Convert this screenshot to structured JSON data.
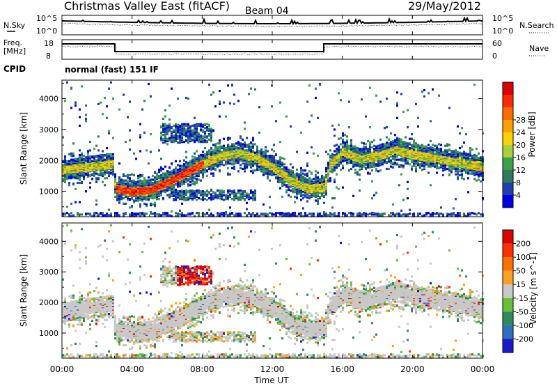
{
  "header": {
    "title": "Christmas Valley East (fitACF)",
    "beam": "Beam 04",
    "date": "29/May/2012"
  },
  "noise_panel": {
    "left_label": "N.Sky",
    "right_label": "N.Search",
    "ticks": [
      "10^5",
      "10^0"
    ]
  },
  "freq_panel": {
    "left_label_1": "Freq.",
    "left_label_2": "[MHz]",
    "left_ticks": [
      "18",
      "8"
    ],
    "right_label": "Nave",
    "right_ticks": [
      "60",
      "0"
    ]
  },
  "cpid": {
    "label": "CPID",
    "value": "normal (fast) 151 IF"
  },
  "x_axis": {
    "label": "Time UT",
    "ticks": [
      "00:00",
      "04:00",
      "08:00",
      "12:00",
      "16:00",
      "20:00",
      "00:00"
    ]
  },
  "chart_data": [
    {
      "type": "heatmap",
      "name": "power",
      "ylabel": "Slant Range [km]",
      "yticks": [
        1000,
        2000,
        3000,
        4000
      ],
      "ylim": [
        180,
        4600
      ],
      "xlim_hours": [
        0,
        24
      ],
      "colorbar_label": "Power [dB]",
      "colorbar_ticks": [
        4,
        8,
        12,
        16,
        20,
        24,
        28
      ],
      "colorbar_colors": [
        "#0000e6",
        "#1f3fb0",
        "#2e7a5c",
        "#3aa04a",
        "#a8d23c",
        "#ffd200",
        "#ffa000",
        "#ff6a00",
        "#ff2a00",
        "#e00000"
      ],
      "band_center_km": [
        [
          0,
          1700
        ],
        [
          2.9,
          1900
        ],
        [
          3.0,
          1100
        ],
        [
          4,
          1000
        ],
        [
          5,
          1050
        ],
        [
          6,
          1300
        ],
        [
          7,
          1600
        ],
        [
          8,
          1900
        ],
        [
          9,
          2150
        ],
        [
          10,
          2250
        ],
        [
          11,
          2100
        ],
        [
          12,
          1800
        ],
        [
          13,
          1350
        ],
        [
          14,
          1100
        ],
        [
          15,
          1150
        ],
        [
          15.2,
          1800
        ],
        [
          16,
          2300
        ],
        [
          17,
          2050
        ],
        [
          18,
          2150
        ],
        [
          19,
          2350
        ],
        [
          20,
          2200
        ],
        [
          21,
          2100
        ],
        [
          22,
          2000
        ],
        [
          23,
          1900
        ],
        [
          24,
          1800
        ]
      ]
    },
    {
      "type": "heatmap",
      "name": "velocity",
      "ylabel": "Slant Range [km]",
      "yticks": [
        1000,
        2000,
        3000,
        4000
      ],
      "ylim": [
        180,
        4600
      ],
      "xlim_hours": [
        0,
        24
      ],
      "colorbar_label": "Velocity [m s^-1]",
      "colorbar_ticks": [
        200,
        100,
        50,
        15,
        -15,
        -50,
        -100,
        -200
      ],
      "colorbar_colors": [
        "#1a1acc",
        "#2f6fbf",
        "#2e8b57",
        "#66c03a",
        "#c8c8c8",
        "#ffa020",
        "#ff7000",
        "#ff3000",
        "#e00000"
      ]
    }
  ]
}
